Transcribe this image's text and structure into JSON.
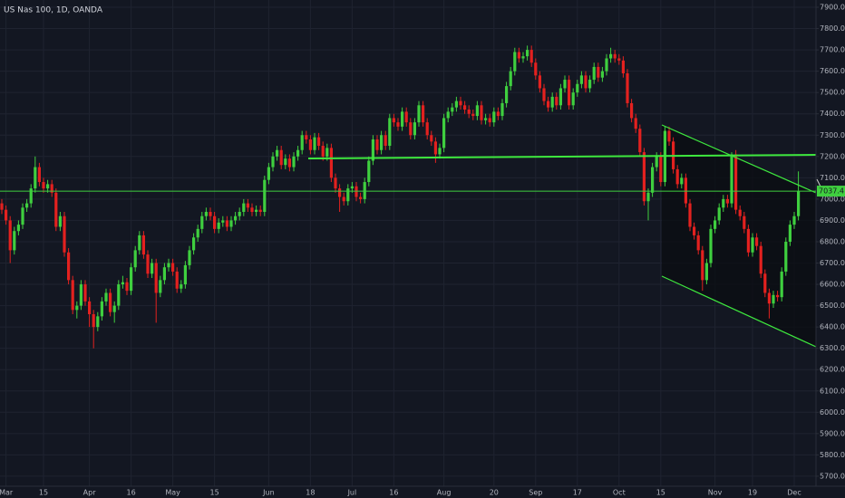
{
  "chart_data": {
    "type": "candlestick",
    "title": "US Nas 100, 1D, OANDA",
    "up_color": "#3fcf3f",
    "down_color": "#e3211f",
    "grid": true,
    "ylim": [
      5653,
      7934
    ],
    "yticks": [
      {
        "value": 5700,
        "label": "5700.0"
      },
      {
        "value": 5800,
        "label": "5800.0"
      },
      {
        "value": 5900,
        "label": "5900.0"
      },
      {
        "value": 6000,
        "label": "6000.0"
      },
      {
        "value": 6100,
        "label": "6100.0"
      },
      {
        "value": 6200,
        "label": "6200.0"
      },
      {
        "value": 6300,
        "label": "6300.0"
      },
      {
        "value": 6400,
        "label": "6400.0"
      },
      {
        "value": 6500,
        "label": "6500.0"
      },
      {
        "value": 6600,
        "label": "6600.0"
      },
      {
        "value": 6700,
        "label": "6700.0"
      },
      {
        "value": 6800,
        "label": "6800.0"
      },
      {
        "value": 6900,
        "label": "6900.0"
      },
      {
        "value": 7000,
        "label": "7000.0"
      },
      {
        "value": 7100,
        "label": "7100.0"
      },
      {
        "value": 7200,
        "label": "7200.0"
      },
      {
        "value": 7300,
        "label": "7300.0"
      },
      {
        "value": 7400,
        "label": "7400.0"
      },
      {
        "value": 7500,
        "label": "7500.0"
      },
      {
        "value": 7600,
        "label": "7600.0"
      },
      {
        "value": 7700,
        "label": "7700.0"
      },
      {
        "value": 7800,
        "label": "7800.0"
      },
      {
        "value": 7900,
        "label": "7900.0"
      }
    ],
    "last_price": {
      "value": 7037.4,
      "label": "7037.4"
    },
    "categories": [
      null,
      "Mar",
      null,
      null,
      null,
      null,
      null,
      null,
      null,
      null,
      "15",
      null,
      null,
      null,
      null,
      null,
      null,
      null,
      null,
      null,
      null,
      "Apr",
      null,
      null,
      null,
      null,
      null,
      null,
      null,
      null,
      null,
      "16",
      null,
      null,
      null,
      null,
      null,
      null,
      null,
      null,
      null,
      "May",
      null,
      null,
      null,
      null,
      null,
      null,
      null,
      null,
      null,
      "15",
      null,
      null,
      null,
      null,
      null,
      null,
      null,
      null,
      null,
      null,
      null,
      null,
      "Jun",
      null,
      null,
      null,
      null,
      null,
      null,
      null,
      null,
      null,
      "18",
      null,
      null,
      null,
      null,
      null,
      null,
      null,
      null,
      null,
      "Jul",
      null,
      null,
      null,
      null,
      null,
      null,
      null,
      null,
      null,
      "16",
      null,
      null,
      null,
      null,
      null,
      null,
      null,
      null,
      null,
      null,
      null,
      "Aug",
      null,
      null,
      null,
      null,
      null,
      null,
      null,
      null,
      null,
      null,
      null,
      "20",
      null,
      null,
      null,
      null,
      null,
      null,
      null,
      null,
      null,
      "Sep",
      null,
      null,
      null,
      null,
      null,
      null,
      null,
      null,
      null,
      "17",
      null,
      null,
      null,
      null,
      null,
      null,
      null,
      null,
      null,
      "Oct",
      null,
      null,
      null,
      null,
      null,
      null,
      null,
      null,
      null,
      "15",
      null,
      null,
      null,
      null,
      null,
      null,
      null,
      null,
      null,
      null,
      null,
      null,
      "Nov",
      null,
      null,
      null,
      null,
      null,
      null,
      null,
      null,
      "19",
      null,
      null,
      null,
      null,
      null,
      null,
      null,
      null,
      null,
      "Dec",
      null
    ],
    "ohlc": [
      [
        6980,
        7000,
        6930,
        6950
      ],
      [
        6950,
        6970,
        6880,
        6900
      ],
      [
        6900,
        6920,
        6700,
        6760
      ],
      [
        6760,
        6870,
        6740,
        6850
      ],
      [
        6850,
        6900,
        6830,
        6880
      ],
      [
        6880,
        6980,
        6860,
        6960
      ],
      [
        6960,
        7000,
        6940,
        6980
      ],
      [
        6980,
        7070,
        6960,
        7050
      ],
      [
        7050,
        7200,
        7030,
        7150
      ],
      [
        7150,
        7170,
        7060,
        7080
      ],
      [
        7080,
        7100,
        7030,
        7050
      ],
      [
        7050,
        7090,
        7030,
        7070
      ],
      [
        7070,
        7090,
        7010,
        7030
      ],
      [
        7030,
        7050,
        6850,
        6870
      ],
      [
        6870,
        6940,
        6850,
        6920
      ],
      [
        6920,
        6940,
        6730,
        6750
      ],
      [
        6750,
        6770,
        6600,
        6620
      ],
      [
        6620,
        6640,
        6460,
        6480
      ],
      [
        6480,
        6520,
        6440,
        6500
      ],
      [
        6500,
        6620,
        6480,
        6600
      ],
      [
        6600,
        6620,
        6500,
        6520
      ],
      [
        6520,
        6540,
        6400,
        6460
      ],
      [
        6460,
        6480,
        6300,
        6400
      ],
      [
        6400,
        6470,
        6380,
        6450
      ],
      [
        6450,
        6540,
        6430,
        6520
      ],
      [
        6520,
        6580,
        6500,
        6560
      ],
      [
        6560,
        6580,
        6450,
        6470
      ],
      [
        6470,
        6520,
        6420,
        6500
      ],
      [
        6500,
        6620,
        6480,
        6600
      ],
      [
        6600,
        6640,
        6580,
        6610
      ],
      [
        6610,
        6630,
        6550,
        6570
      ],
      [
        6570,
        6700,
        6550,
        6680
      ],
      [
        6680,
        6780,
        6660,
        6760
      ],
      [
        6760,
        6850,
        6740,
        6830
      ],
      [
        6830,
        6850,
        6720,
        6740
      ],
      [
        6740,
        6760,
        6630,
        6650
      ],
      [
        6650,
        6720,
        6630,
        6700
      ],
      [
        6700,
        6720,
        6420,
        6560
      ],
      [
        6560,
        6640,
        6540,
        6620
      ],
      [
        6620,
        6700,
        6600,
        6680
      ],
      [
        6680,
        6720,
        6660,
        6700
      ],
      [
        6700,
        6720,
        6640,
        6660
      ],
      [
        6660,
        6680,
        6560,
        6580
      ],
      [
        6580,
        6620,
        6560,
        6600
      ],
      [
        6600,
        6710,
        6580,
        6690
      ],
      [
        6690,
        6780,
        6670,
        6760
      ],
      [
        6760,
        6840,
        6740,
        6820
      ],
      [
        6820,
        6880,
        6800,
        6860
      ],
      [
        6860,
        6940,
        6840,
        6920
      ],
      [
        6920,
        6960,
        6900,
        6940
      ],
      [
        6940,
        6960,
        6900,
        6920
      ],
      [
        6920,
        6940,
        6840,
        6860
      ],
      [
        6860,
        6910,
        6840,
        6890
      ],
      [
        6890,
        6920,
        6870,
        6900
      ],
      [
        6900,
        6920,
        6850,
        6870
      ],
      [
        6870,
        6920,
        6850,
        6900
      ],
      [
        6900,
        6940,
        6880,
        6920
      ],
      [
        6920,
        6960,
        6900,
        6940
      ],
      [
        6940,
        7000,
        6920,
        6980
      ],
      [
        6980,
        7000,
        6940,
        6960
      ],
      [
        6960,
        6980,
        6920,
        6940
      ],
      [
        6940,
        6970,
        6920,
        6950
      ],
      [
        6950,
        6970,
        6920,
        6940
      ],
      [
        6940,
        7110,
        6920,
        7090
      ],
      [
        7090,
        7170,
        7070,
        7150
      ],
      [
        7150,
        7220,
        7130,
        7200
      ],
      [
        7200,
        7250,
        7180,
        7230
      ],
      [
        7230,
        7250,
        7140,
        7160
      ],
      [
        7160,
        7210,
        7140,
        7190
      ],
      [
        7190,
        7210,
        7130,
        7150
      ],
      [
        7150,
        7220,
        7130,
        7200
      ],
      [
        7200,
        7250,
        7180,
        7230
      ],
      [
        7230,
        7320,
        7210,
        7300
      ],
      [
        7300,
        7320,
        7260,
        7280
      ],
      [
        7280,
        7300,
        7210,
        7230
      ],
      [
        7230,
        7310,
        7210,
        7290
      ],
      [
        7290,
        7310,
        7230,
        7250
      ],
      [
        7250,
        7270,
        7180,
        7200
      ],
      [
        7200,
        7260,
        7180,
        7240
      ],
      [
        7240,
        7260,
        7080,
        7100
      ],
      [
        7100,
        7120,
        7030,
        7050
      ],
      [
        7050,
        7070,
        6940,
        7010
      ],
      [
        7010,
        7030,
        6970,
        6990
      ],
      [
        6990,
        7070,
        6970,
        7050
      ],
      [
        7050,
        7080,
        7030,
        7060
      ],
      [
        7060,
        7080,
        6990,
        7010
      ],
      [
        7010,
        7030,
        6980,
        7000
      ],
      [
        7000,
        7100,
        6980,
        7080
      ],
      [
        7080,
        7200,
        7060,
        7180
      ],
      [
        7180,
        7300,
        7160,
        7280
      ],
      [
        7280,
        7300,
        7210,
        7230
      ],
      [
        7230,
        7320,
        7210,
        7300
      ],
      [
        7300,
        7320,
        7230,
        7250
      ],
      [
        7250,
        7400,
        7230,
        7380
      ],
      [
        7380,
        7400,
        7340,
        7360
      ],
      [
        7360,
        7380,
        7320,
        7340
      ],
      [
        7340,
        7430,
        7320,
        7410
      ],
      [
        7410,
        7430,
        7340,
        7360
      ],
      [
        7360,
        7380,
        7280,
        7300
      ],
      [
        7300,
        7380,
        7280,
        7360
      ],
      [
        7360,
        7460,
        7340,
        7440
      ],
      [
        7440,
        7460,
        7340,
        7360
      ],
      [
        7360,
        7380,
        7280,
        7300
      ],
      [
        7300,
        7320,
        7250,
        7270
      ],
      [
        7270,
        7290,
        7170,
        7210
      ],
      [
        7210,
        7260,
        7190,
        7240
      ],
      [
        7240,
        7400,
        7220,
        7380
      ],
      [
        7380,
        7430,
        7360,
        7410
      ],
      [
        7410,
        7450,
        7390,
        7430
      ],
      [
        7430,
        7480,
        7410,
        7460
      ],
      [
        7460,
        7480,
        7420,
        7440
      ],
      [
        7440,
        7460,
        7400,
        7420
      ],
      [
        7420,
        7440,
        7380,
        7400
      ],
      [
        7400,
        7420,
        7370,
        7390
      ],
      [
        7390,
        7460,
        7370,
        7440
      ],
      [
        7440,
        7460,
        7350,
        7370
      ],
      [
        7370,
        7400,
        7350,
        7380
      ],
      [
        7380,
        7400,
        7340,
        7360
      ],
      [
        7360,
        7430,
        7340,
        7410
      ],
      [
        7410,
        7430,
        7370,
        7390
      ],
      [
        7390,
        7470,
        7370,
        7450
      ],
      [
        7450,
        7550,
        7430,
        7530
      ],
      [
        7530,
        7620,
        7510,
        7600
      ],
      [
        7600,
        7710,
        7580,
        7690
      ],
      [
        7690,
        7710,
        7640,
        7660
      ],
      [
        7660,
        7690,
        7640,
        7670
      ],
      [
        7670,
        7720,
        7650,
        7700
      ],
      [
        7700,
        7720,
        7620,
        7640
      ],
      [
        7640,
        7660,
        7560,
        7580
      ],
      [
        7580,
        7600,
        7500,
        7520
      ],
      [
        7520,
        7540,
        7440,
        7460
      ],
      [
        7460,
        7480,
        7410,
        7430
      ],
      [
        7430,
        7500,
        7410,
        7480
      ],
      [
        7480,
        7500,
        7420,
        7440
      ],
      [
        7440,
        7540,
        7420,
        7520
      ],
      [
        7520,
        7580,
        7500,
        7560
      ],
      [
        7560,
        7580,
        7420,
        7440
      ],
      [
        7440,
        7520,
        7420,
        7500
      ],
      [
        7500,
        7560,
        7480,
        7540
      ],
      [
        7540,
        7600,
        7520,
        7580
      ],
      [
        7580,
        7600,
        7500,
        7520
      ],
      [
        7520,
        7580,
        7500,
        7560
      ],
      [
        7560,
        7640,
        7540,
        7620
      ],
      [
        7620,
        7640,
        7550,
        7570
      ],
      [
        7570,
        7620,
        7550,
        7600
      ],
      [
        7600,
        7680,
        7580,
        7660
      ],
      [
        7660,
        7710,
        7640,
        7680
      ],
      [
        7680,
        7700,
        7640,
        7660
      ],
      [
        7660,
        7680,
        7630,
        7650
      ],
      [
        7650,
        7670,
        7570,
        7590
      ],
      [
        7590,
        7610,
        7430,
        7450
      ],
      [
        7450,
        7470,
        7360,
        7380
      ],
      [
        7380,
        7400,
        7310,
        7330
      ],
      [
        7330,
        7350,
        7200,
        7220
      ],
      [
        7220,
        7240,
        6970,
        6990
      ],
      [
        6990,
        7050,
        6900,
        7030
      ],
      [
        7030,
        7170,
        7010,
        7150
      ],
      [
        7150,
        7220,
        7130,
        7200
      ],
      [
        7200,
        7220,
        7060,
        7080
      ],
      [
        7080,
        7340,
        7060,
        7320
      ],
      [
        7320,
        7340,
        7250,
        7270
      ],
      [
        7270,
        7290,
        7120,
        7140
      ],
      [
        7140,
        7160,
        7050,
        7070
      ],
      [
        7070,
        7120,
        7050,
        7100
      ],
      [
        7100,
        7120,
        6960,
        6980
      ],
      [
        6980,
        7000,
        6850,
        6870
      ],
      [
        6870,
        6890,
        6810,
        6830
      ],
      [
        6830,
        6850,
        6740,
        6760
      ],
      [
        6760,
        6780,
        6570,
        6620
      ],
      [
        6620,
        6720,
        6600,
        6700
      ],
      [
        6700,
        6880,
        6680,
        6860
      ],
      [
        6860,
        6920,
        6840,
        6900
      ],
      [
        6900,
        6980,
        6880,
        6960
      ],
      [
        6960,
        7020,
        6940,
        7000
      ],
      [
        7000,
        7020,
        6960,
        6980
      ],
      [
        6980,
        7220,
        6960,
        7210
      ],
      [
        7210,
        7230,
        6930,
        6950
      ],
      [
        6950,
        6970,
        6900,
        6920
      ],
      [
        6920,
        6940,
        6840,
        6860
      ],
      [
        6860,
        6880,
        6730,
        6750
      ],
      [
        6750,
        6840,
        6730,
        6820
      ],
      [
        6820,
        6840,
        6760,
        6780
      ],
      [
        6780,
        6800,
        6630,
        6650
      ],
      [
        6650,
        6670,
        6540,
        6560
      ],
      [
        6560,
        6580,
        6440,
        6510
      ],
      [
        6510,
        6570,
        6490,
        6550
      ],
      [
        6550,
        6570,
        6520,
        6540
      ],
      [
        6540,
        6680,
        6520,
        6660
      ],
      [
        6660,
        6820,
        6640,
        6800
      ],
      [
        6800,
        6900,
        6780,
        6880
      ],
      [
        6880,
        6940,
        6860,
        6920
      ],
      [
        6920,
        7130,
        6900,
        7037.4
      ]
    ]
  }
}
